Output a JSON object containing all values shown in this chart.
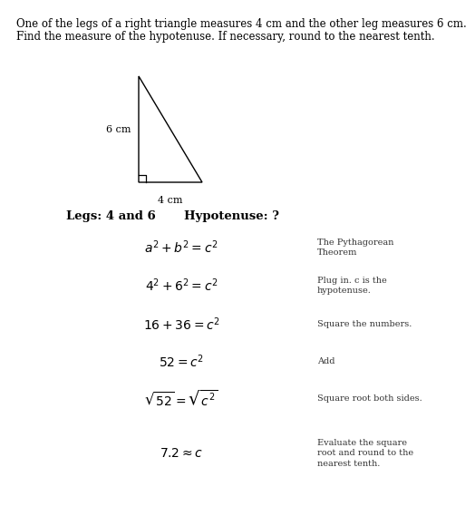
{
  "title_line1": "One of the legs of a right triangle measures 4 cm and the other leg measures 6 cm.",
  "title_line2": "Find the measure of the hypotenuse. If necessary, round to the nearest tenth.",
  "legs_label": "Legs: 4 and 6",
  "hypotenuse_label": "Hypotenuse: ?",
  "tri_label_v": "6 cm",
  "tri_label_h": "4 cm",
  "steps": [
    {
      "formula": "$a^2 + b^2 = c^2$",
      "note": "The Pythagorean\nTheorem"
    },
    {
      "formula": "$4^2 + 6^2 = c^2$",
      "note": "Plug in. c is the\nhypotenuse."
    },
    {
      "formula": "$16 + 36 = c^2$",
      "note": "Square the numbers."
    },
    {
      "formula": "$52 = c^2$",
      "note": "Add"
    },
    {
      "formula": "$\\sqrt{52} = \\sqrt{c^2}$",
      "note": "Square root both sides."
    },
    {
      "formula": "$7.2 \\approx c$",
      "note": "Evaluate the square\nroot and round to the\nnearest tenth."
    }
  ],
  "bg_color": "#ffffff",
  "text_color": "#000000",
  "note_color": "#333333",
  "title_fontsize": 8.5,
  "legs_fontsize": 9.5,
  "formula_fontsize": 10.0,
  "note_fontsize": 7.0,
  "tri_label_fontsize": 8.0
}
